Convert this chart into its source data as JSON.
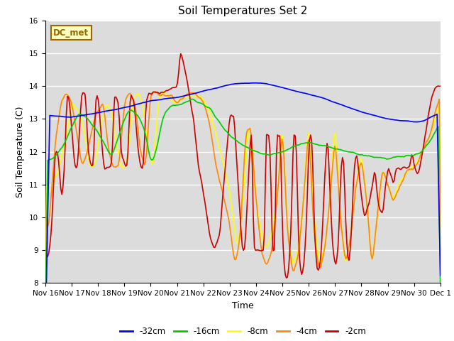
{
  "title": "Soil Temperatures Set 2",
  "xlabel": "Time",
  "ylabel": "Soil Temperature (C)",
  "ylim": [
    8.0,
    16.0
  ],
  "yticks": [
    8.0,
    9.0,
    10.0,
    11.0,
    12.0,
    13.0,
    14.0,
    15.0,
    16.0
  ],
  "bg_color": "#dcdcdc",
  "plot_bg_color": "#dcdcdc",
  "grid_color": "#ffffff",
  "annotation_text": "DC_met",
  "annotation_bg": "#ffffc0",
  "annotation_border": "#996600",
  "legend_entries": [
    "-32cm",
    "-16cm",
    "-8cm",
    "-4cm",
    "-2cm"
  ],
  "line_colors": [
    "#0000ff",
    "#00cc00",
    "#ffff00",
    "#ff8800",
    "#cc0000"
  ],
  "title_fontsize": 11,
  "tick_fontsize": 7.5,
  "label_fontsize": 9
}
